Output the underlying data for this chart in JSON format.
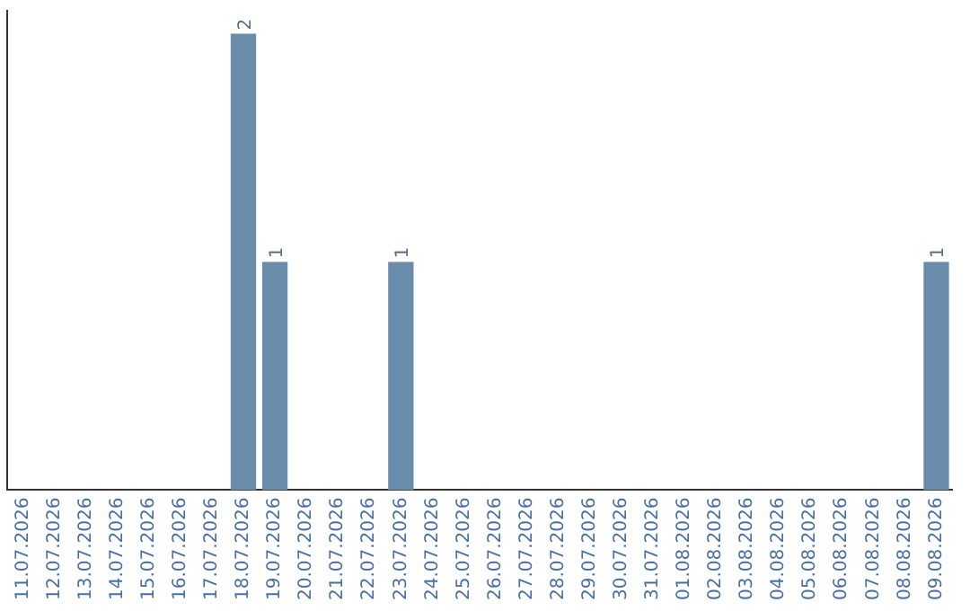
{
  "chart_data": {
    "type": "bar",
    "categories": [
      "11.07.2026",
      "12.07.2026",
      "13.07.2026",
      "14.07.2026",
      "15.07.2026",
      "16.07.2026",
      "17.07.2026",
      "18.07.2026",
      "19.07.2026",
      "20.07.2026",
      "21.07.2026",
      "22.07.2026",
      "23.07.2026",
      "24.07.2026",
      "25.07.2026",
      "26.07.2026",
      "27.07.2026",
      "28.07.2026",
      "29.07.2026",
      "30.07.2026",
      "31.07.2026",
      "01.08.2026",
      "02.08.2026",
      "03.08.2026",
      "04.08.2026",
      "05.08.2026",
      "06.08.2026",
      "07.08.2026",
      "08.08.2026",
      "09.08.2026"
    ],
    "values": [
      0,
      0,
      0,
      0,
      0,
      0,
      0,
      2,
      1,
      0,
      0,
      0,
      1,
      0,
      0,
      0,
      0,
      0,
      0,
      0,
      0,
      0,
      0,
      0,
      0,
      0,
      0,
      0,
      0,
      1
    ],
    "value_labels": [
      null,
      null,
      null,
      null,
      null,
      null,
      null,
      "2",
      "1",
      null,
      null,
      null,
      "1",
      null,
      null,
      null,
      null,
      null,
      null,
      null,
      null,
      null,
      null,
      null,
      null,
      null,
      null,
      null,
      null,
      "1"
    ],
    "color": "#6a8cab",
    "tick_labels": "x",
    "grid": false,
    "legend": false
  }
}
